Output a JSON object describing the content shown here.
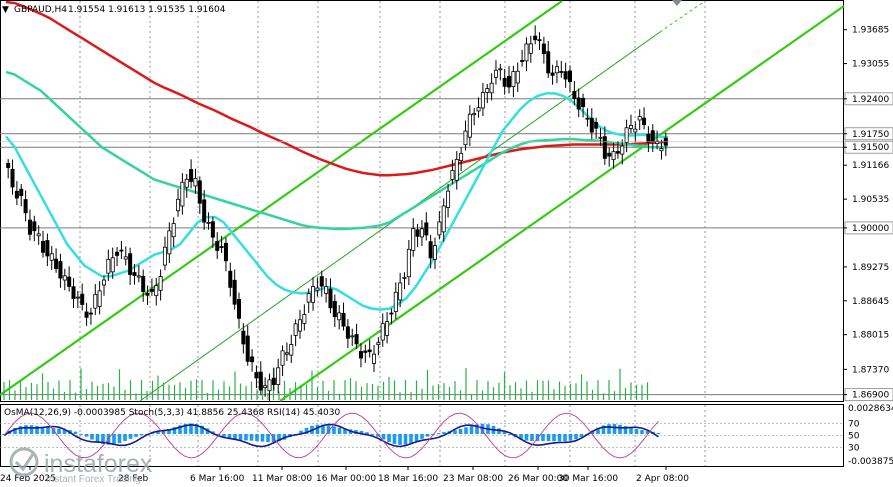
{
  "chart_data": {
    "type": "line",
    "symbol_header": "GBPAUD,H4",
    "ohlc_header": "1.91554 1.91613 1.91535 1.91604",
    "price_ticks": [
      "1.93685",
      "1.93055",
      "1.92400",
      "1.91750",
      "1.91500",
      "1.91166",
      "1.90535",
      "1.90000",
      "1.89275",
      "1.88645",
      "1.88015",
      "1.87370",
      "1.86900"
    ],
    "price_tick_values": [
      1.93685,
      1.93055,
      1.924,
      1.9175,
      1.915,
      1.91166,
      1.90535,
      1.9,
      1.89275,
      1.88645,
      1.88015,
      1.8737,
      1.869
    ],
    "highlighted_levels": [
      1.924,
      1.9175,
      1.915,
      1.9,
      1.869
    ],
    "current_price": 1.916,
    "ylim": [
      1.868,
      1.942
    ],
    "time_labels": [
      "24 Feb 2025",
      "28 Feb",
      "6 Mar 16:00",
      "11 Mar 08:00",
      "16 Mar 00:00",
      "18 Mar 16:00",
      "23 Mar 08:00",
      "26 Mar 00:00",
      "30 Mar 16:00",
      "2 Apr 08:00"
    ],
    "indicators_header": "OsMA(12,26,9) -0.0003985  Stoch(5,3,3) 41.8856 25.4368  RSI(14) 45.4030",
    "indicator_ticks": [
      "0.0028634",
      "70",
      "50",
      "30",
      "-0.0038754"
    ],
    "close_path": [
      1.912,
      1.908,
      1.905,
      1.9,
      1.898,
      1.895,
      1.893,
      1.89,
      1.888,
      1.885,
      1.884,
      1.889,
      1.893,
      1.896,
      1.894,
      1.891,
      1.889,
      1.887,
      1.892,
      1.899,
      1.905,
      1.91,
      1.908,
      1.902,
      1.898,
      1.896,
      1.89,
      1.882,
      1.876,
      1.872,
      1.87,
      1.872,
      1.876,
      1.879,
      1.883,
      1.887,
      1.89,
      1.888,
      1.884,
      1.882,
      1.879,
      1.877,
      1.876,
      1.879,
      1.883,
      1.887,
      1.892,
      1.899,
      1.9,
      1.895,
      1.9,
      1.908,
      1.912,
      1.918,
      1.922,
      1.924,
      1.928,
      1.929,
      1.926,
      1.93,
      1.933,
      1.936,
      1.932,
      1.928,
      1.93,
      1.926,
      1.923,
      1.92,
      1.918,
      1.914,
      1.913,
      1.916,
      1.919,
      1.92,
      1.917,
      1.915,
      1.916
    ],
    "ma_fast": [
      1.917,
      1.915,
      1.912,
      1.909,
      1.906,
      1.903,
      1.9,
      1.897,
      1.895,
      1.893,
      1.892,
      1.891,
      1.891,
      1.8915,
      1.892,
      1.893,
      1.894,
      1.895,
      1.8955,
      1.896,
      1.897,
      1.899,
      1.901,
      1.902,
      1.902,
      1.901,
      1.899,
      1.897,
      1.895,
      1.893,
      1.891,
      1.8895,
      1.8885,
      1.888,
      1.8878,
      1.888,
      1.8885,
      1.889,
      1.8885,
      1.8875,
      1.8865,
      1.8855,
      1.885,
      1.8848,
      1.885,
      1.8858,
      1.887,
      1.889,
      1.8915,
      1.894,
      1.897,
      1.9,
      1.903,
      1.906,
      1.909,
      1.912,
      1.915,
      1.918,
      1.92,
      1.922,
      1.9235,
      1.9245,
      1.925,
      1.925,
      1.9245,
      1.9235,
      1.922,
      1.9205,
      1.919,
      1.918,
      1.9175,
      1.9172,
      1.9172,
      1.9173,
      1.9172,
      1.917,
      1.9168
    ],
    "ma_mid": [
      1.929,
      1.9285,
      1.9275,
      1.9265,
      1.9255,
      1.924,
      1.9225,
      1.921,
      1.9195,
      1.918,
      1.9165,
      1.915,
      1.914,
      1.913,
      1.912,
      1.911,
      1.91,
      1.909,
      1.9085,
      1.908,
      1.9075,
      1.907,
      1.9065,
      1.906,
      1.9055,
      1.905,
      1.9045,
      1.904,
      1.9035,
      1.903,
      1.9025,
      1.902,
      1.9015,
      1.901,
      1.9005,
      1.9002,
      1.9,
      1.8999,
      1.8998,
      1.8998,
      1.8999,
      1.9,
      1.9002,
      1.9005,
      1.901,
      1.902,
      1.903,
      1.904,
      1.905,
      1.906,
      1.907,
      1.908,
      1.909,
      1.91,
      1.911,
      1.912,
      1.913,
      1.914,
      1.9148,
      1.9155,
      1.916,
      1.9162,
      1.9163,
      1.9164,
      1.9165,
      1.9165,
      1.9164,
      1.9163,
      1.9162,
      1.916,
      1.9158,
      1.9156,
      1.9154,
      1.9152,
      1.915,
      1.915,
      1.915
    ],
    "ma_slow": [
      1.942,
      1.9418,
      1.9412,
      1.9405,
      1.9398,
      1.939,
      1.938,
      1.937,
      1.936,
      1.935,
      1.934,
      1.933,
      1.932,
      1.931,
      1.93,
      1.929,
      1.928,
      1.927,
      1.9262,
      1.9255,
      1.9248,
      1.924,
      1.9232,
      1.9225,
      1.9218,
      1.921,
      1.9202,
      1.9195,
      1.9188,
      1.918,
      1.9172,
      1.9165,
      1.9158,
      1.915,
      1.9142,
      1.9135,
      1.9128,
      1.9122,
      1.9116,
      1.911,
      1.9106,
      1.9102,
      1.91,
      1.9098,
      1.9098,
      1.9099,
      1.91,
      1.9102,
      1.9105,
      1.9108,
      1.9112,
      1.9116,
      1.912,
      1.9124,
      1.9128,
      1.9132,
      1.9136,
      1.914,
      1.9143,
      1.9146,
      1.9148,
      1.915,
      1.9152,
      1.9153,
      1.9154,
      1.9155,
      1.9155,
      1.9155,
      1.9155,
      1.9155,
      1.9155,
      1.9155,
      1.9156,
      1.9157,
      1.9158,
      1.9159,
      1.916
    ]
  },
  "watermark": {
    "brand": "instaforex",
    "tagline": "Instant Forex Trading"
  },
  "colors": {
    "candles": "#000000",
    "fast_ma": "#33e0e0",
    "mid_ma": "#33d499",
    "slow_ma": "#dd1a1a",
    "channel": "#33cc11",
    "osma": "#1a9bf0",
    "rsi": "#1a1a8c",
    "stoch": "#c03a8f",
    "level": "#7a7a7a"
  }
}
